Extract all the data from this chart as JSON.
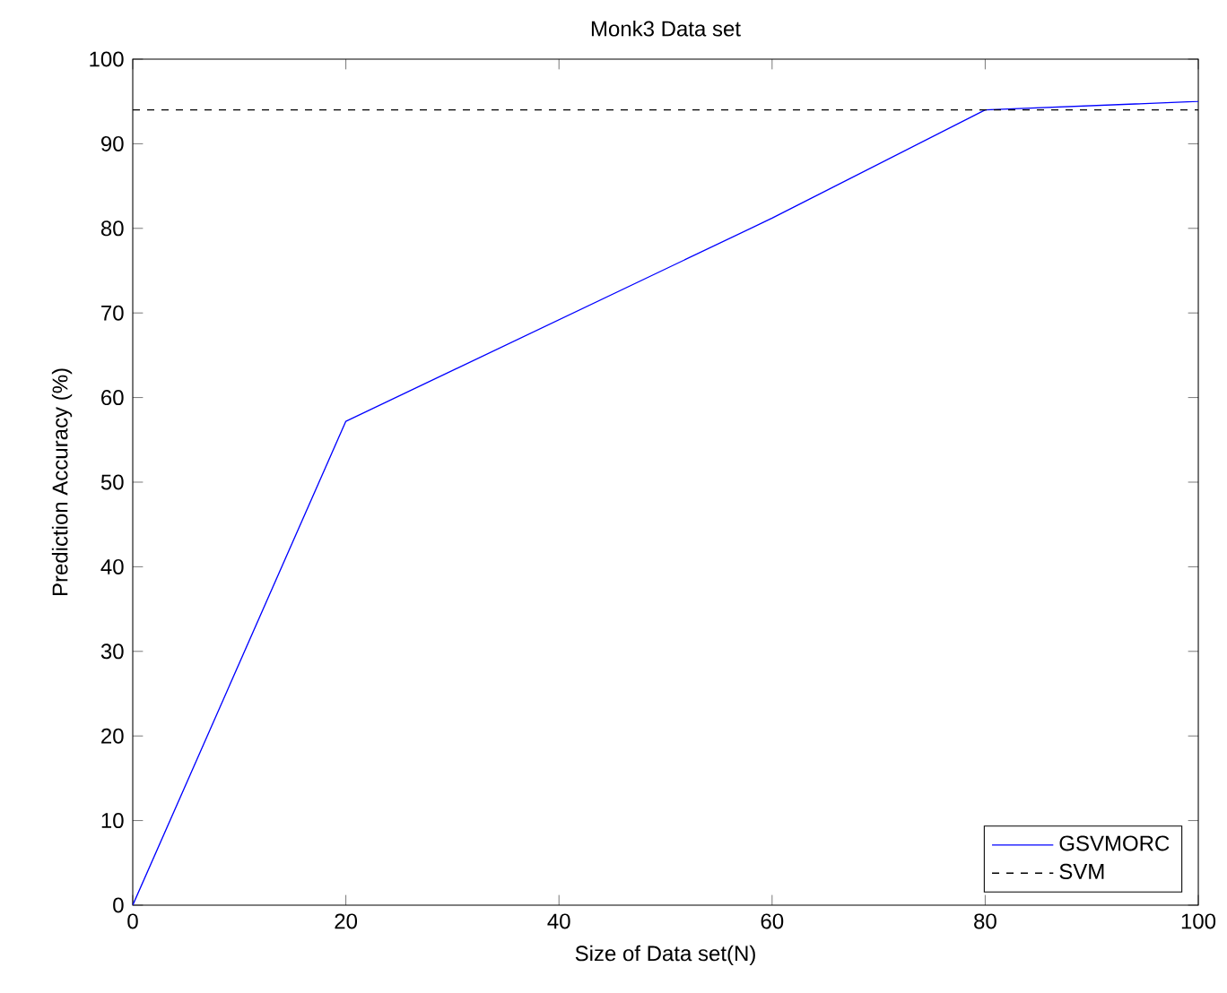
{
  "chart_data": {
    "type": "line",
    "title": "Monk3 Data set",
    "xlabel": "Size of Data set(N)",
    "ylabel": "Prediction Accuracy (%)",
    "series": [
      {
        "name": "GSVMORC",
        "color": "#0000ff",
        "x": [
          0,
          20,
          60,
          80,
          100
        ],
        "values": [
          0,
          57.2,
          81.2,
          94,
          95
        ],
        "line_style": "solid"
      },
      {
        "name": "SVM",
        "color": "#000000",
        "x": [
          0,
          100
        ],
        "values": [
          94,
          94
        ],
        "line_style": "dashed"
      }
    ],
    "xlim": [
      0,
      100
    ],
    "xticks": [
      0,
      20,
      40,
      60,
      80,
      100
    ],
    "ylim": [
      0,
      100
    ],
    "yticks": [
      0,
      10,
      20,
      30,
      40,
      50,
      60,
      70,
      80,
      90,
      100
    ],
    "legend": "bottom right",
    "marker": "none"
  }
}
